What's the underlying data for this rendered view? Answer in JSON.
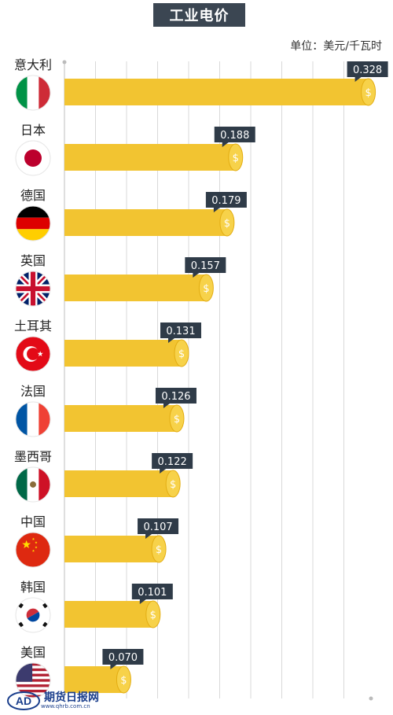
{
  "chart_data": {
    "type": "bar",
    "orientation": "horizontal",
    "title": "工业电价",
    "unit_label": "单位：美元/千瓦时",
    "categories": [
      "意大利",
      "日本",
      "德国",
      "英国",
      "土耳其",
      "法国",
      "墨西哥",
      "中国",
      "韩国",
      "美国"
    ],
    "values": [
      0.328,
      0.188,
      0.179,
      0.157,
      0.131,
      0.126,
      0.122,
      0.107,
      0.101,
      0.07
    ],
    "value_labels": [
      "0.328",
      "0.188",
      "0.179",
      "0.157",
      "0.131",
      "0.126",
      "0.122",
      "0.107",
      "0.101",
      "0.070"
    ],
    "flags": [
      "italy-flag",
      "japan-flag",
      "germany-flag",
      "uk-flag",
      "turkey-flag",
      "france-flag",
      "mexico-flag",
      "china-flag",
      "korea-flag",
      "usa-flag"
    ],
    "xlim": [
      0,
      0.33
    ],
    "grid": true,
    "bar_color": "#f2c431",
    "label_color": "#2f3b48",
    "legend": "none"
  },
  "watermark": {
    "text": "期货日报网",
    "url": "www.qhrb.com.cn"
  }
}
